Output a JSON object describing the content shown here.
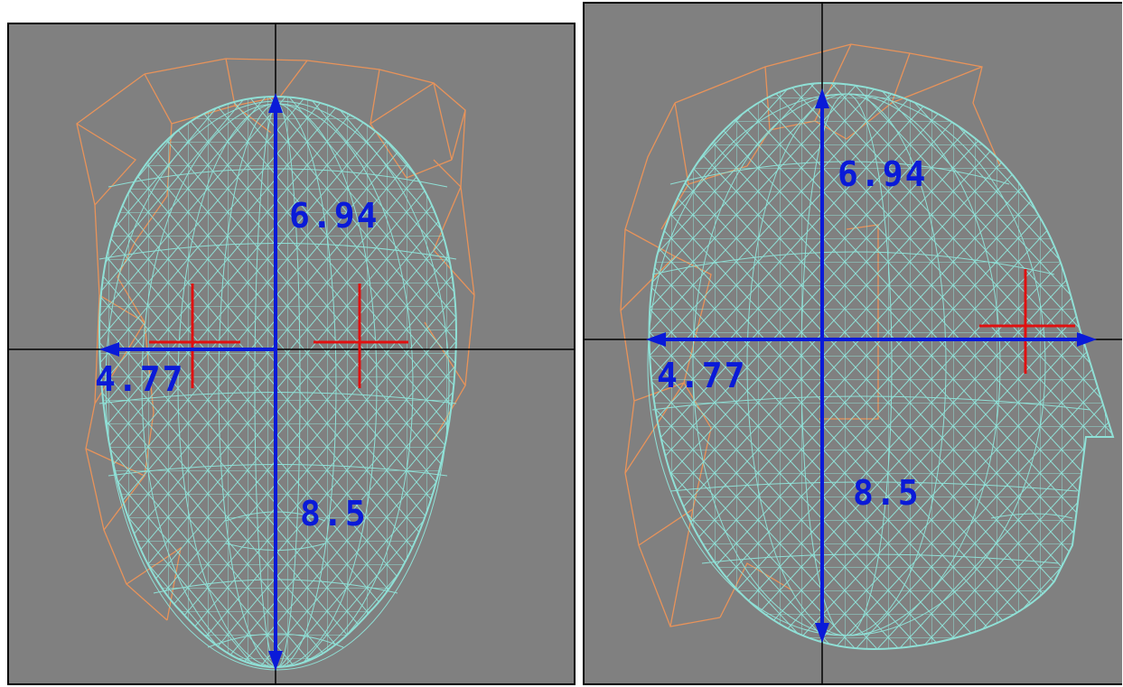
{
  "colors": {
    "background": "#808080",
    "wireframe": "#8fe0d6",
    "hair_wireframe": "#e8935a",
    "axis": "#000000",
    "dimension": "#0a1ad8",
    "marker": "#e01010"
  },
  "front_view": {
    "dim_top": "6.94",
    "dim_side": "4.77",
    "dim_bottom": "8.5"
  },
  "side_view": {
    "dim_top": "6.94",
    "dim_side": "4.77",
    "dim_bottom": "8.5"
  }
}
